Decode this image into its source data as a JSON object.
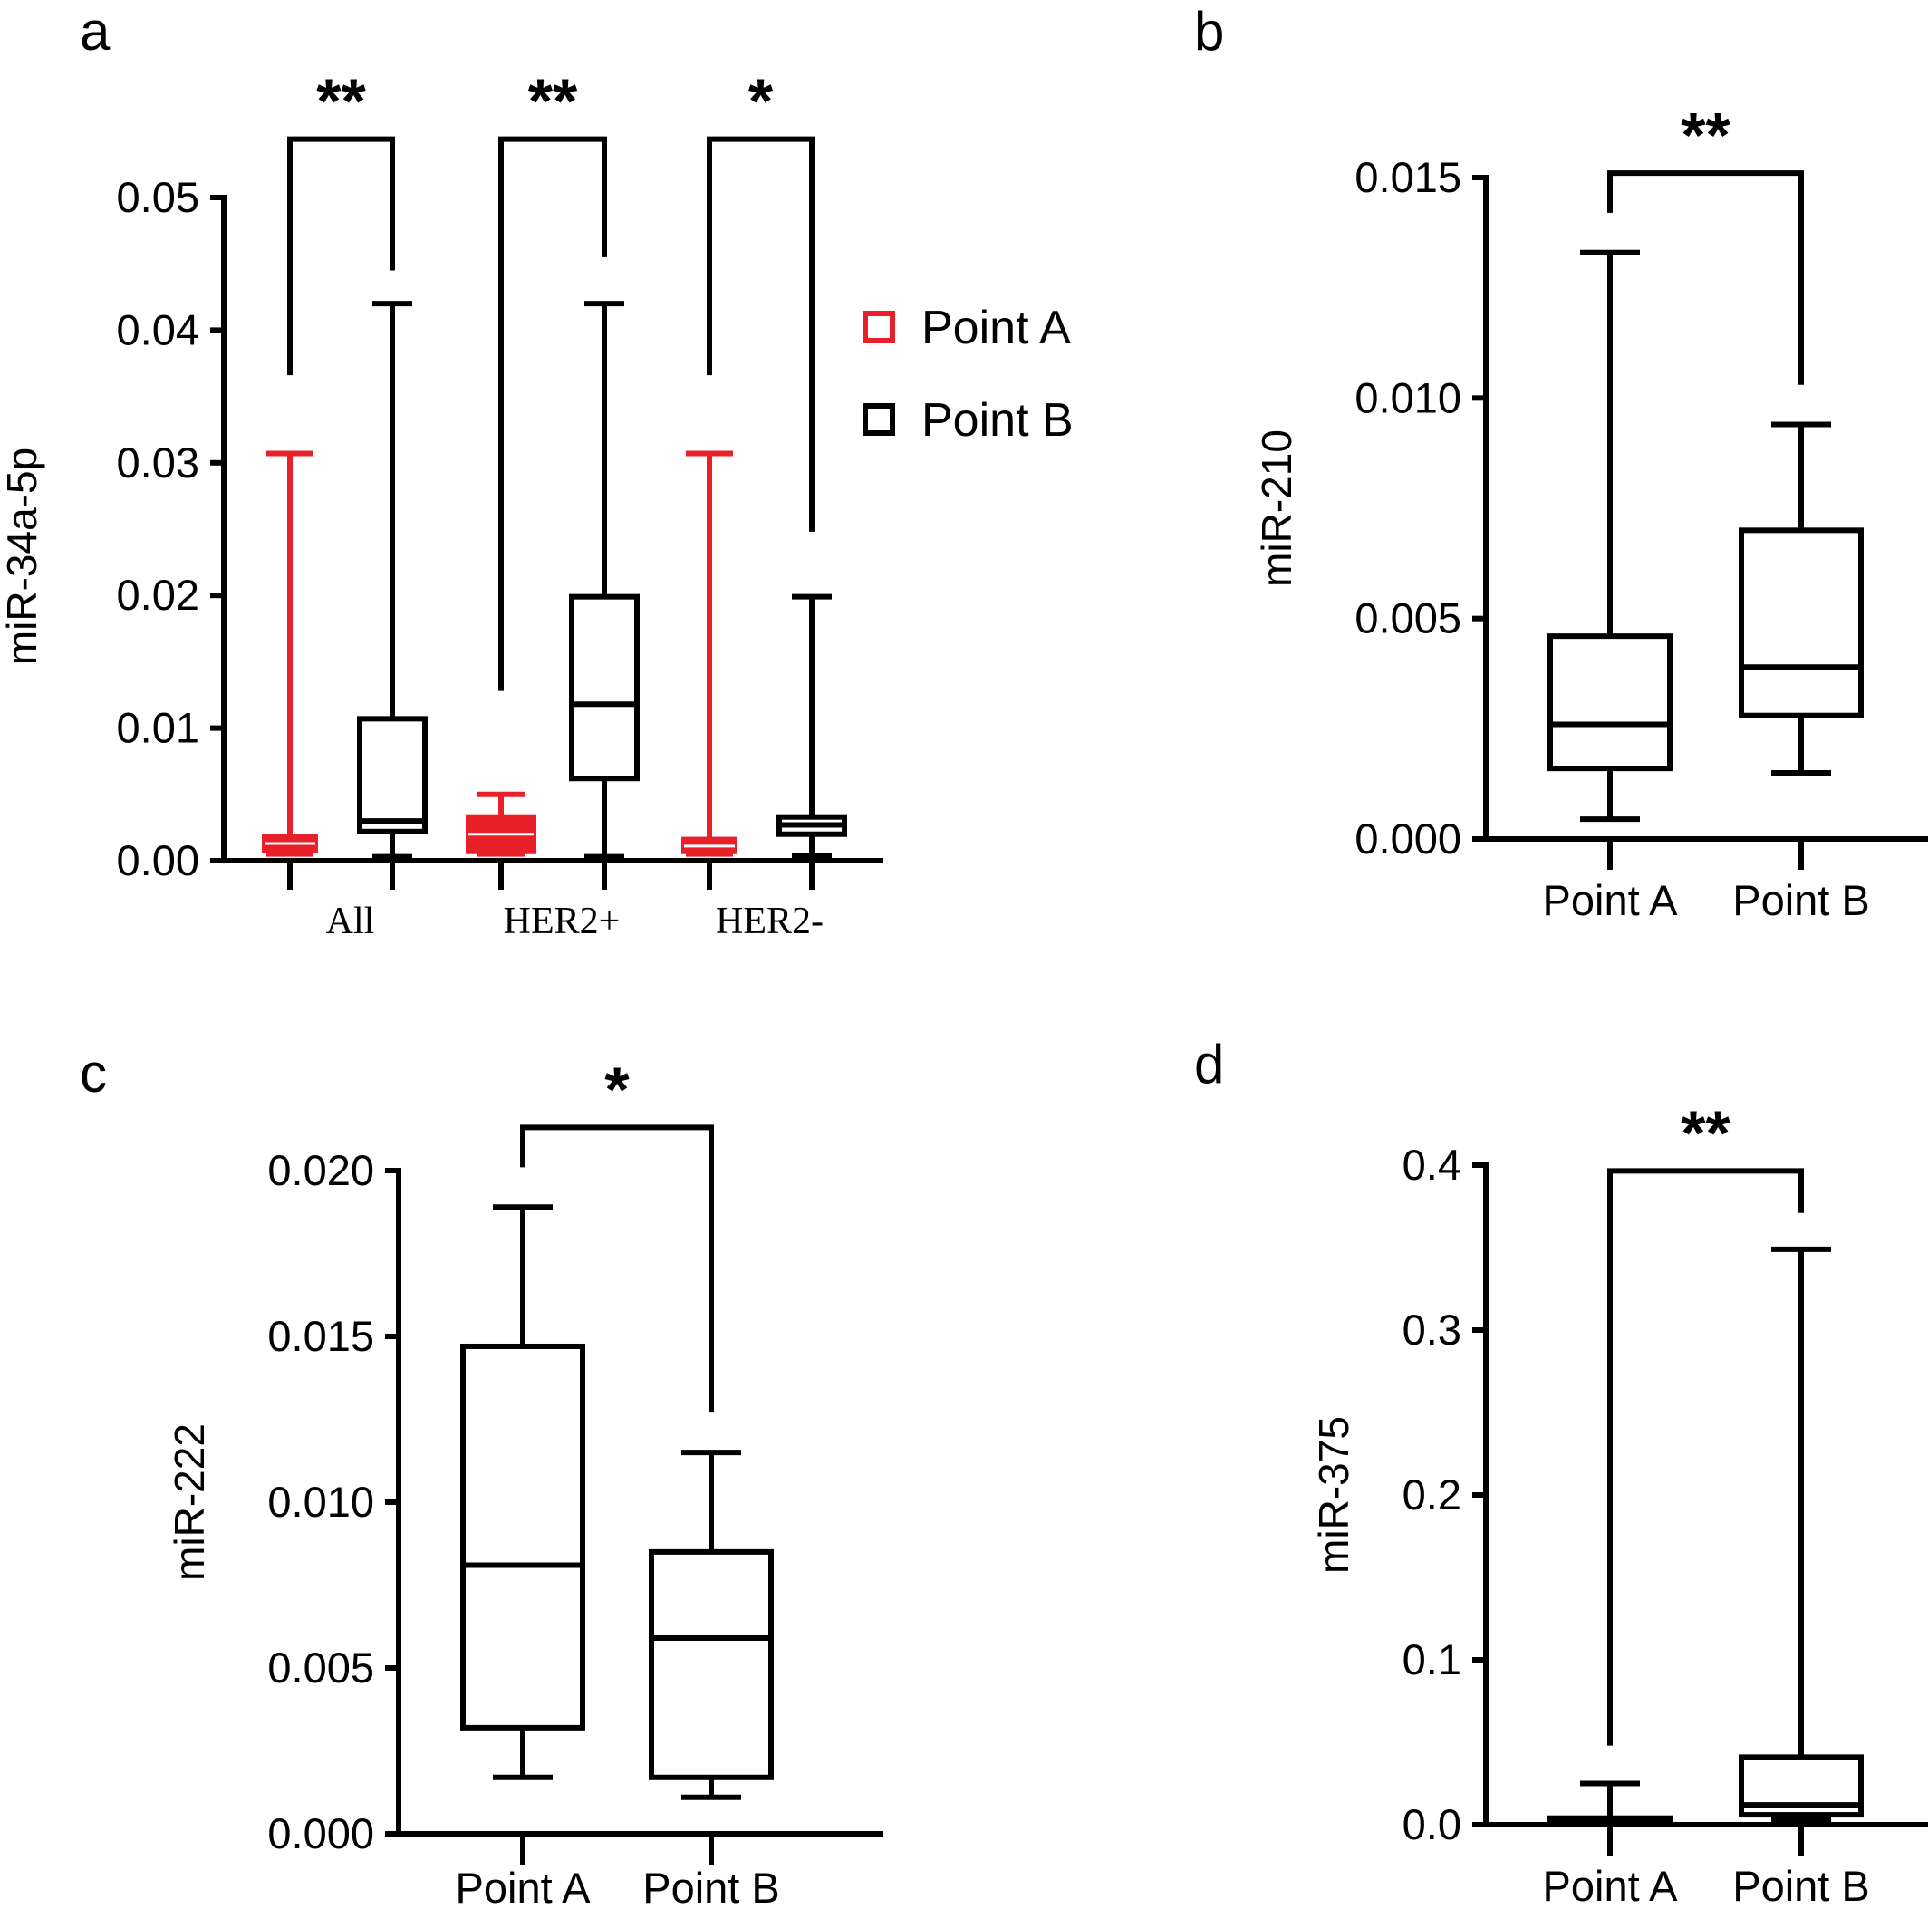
{
  "chart_data": [
    {
      "panel": "a",
      "type": "box",
      "ylabel": "miR-34a-5p",
      "ylim": [
        0,
        0.05
      ],
      "yticks": [
        "0.00",
        "0.01",
        "0.02",
        "0.03",
        "0.04",
        "0.05"
      ],
      "ytick_values": [
        0,
        0.01,
        0.02,
        0.03,
        0.04,
        0.05
      ],
      "categories": [
        "All",
        "HER2+",
        "HER2-"
      ],
      "legend": {
        "placement": "right",
        "entries": [
          {
            "name": "Point A",
            "color": "#e8202a"
          },
          {
            "name": "Point B",
            "color": "#000000"
          }
        ]
      },
      "series": [
        {
          "name": "Point A",
          "color": "#e8202a",
          "boxes": [
            {
              "category": "All",
              "min": 0.0005,
              "q1": 0.0008,
              "median": 0.0013,
              "q3": 0.0018,
              "max": 0.0307
            },
            {
              "category": "HER2+",
              "min": 0.0005,
              "q1": 0.0007,
              "median": 0.002,
              "q3": 0.0033,
              "max": 0.005
            },
            {
              "category": "HER2-",
              "min": 0.0005,
              "q1": 0.0007,
              "median": 0.0011,
              "q3": 0.0016,
              "max": 0.0307
            }
          ]
        },
        {
          "name": "Point B",
          "color": "#000000",
          "boxes": [
            {
              "category": "All",
              "min": 0.0003,
              "q1": 0.0022,
              "median": 0.003,
              "q3": 0.0107,
              "max": 0.042
            },
            {
              "category": "HER2+",
              "min": 0.0003,
              "q1": 0.0062,
              "median": 0.0118,
              "q3": 0.0199,
              "max": 0.042
            },
            {
              "category": "HER2-",
              "min": 0.0004,
              "q1": 0.002,
              "median": 0.0027,
              "q3": 0.0033,
              "max": 0.0199
            }
          ]
        }
      ],
      "significance": [
        {
          "category": "All",
          "label": "**",
          "left_drop_to": 0.0366,
          "right_drop_to": 0.0445
        },
        {
          "category": "HER2+",
          "label": "**",
          "left_drop_to": 0.0128,
          "right_drop_to": 0.0455
        },
        {
          "category": "HER2-",
          "label": "*",
          "left_drop_to": 0.0366,
          "right_drop_to": 0.0248
        }
      ],
      "bracket_top": 0.0544
    },
    {
      "panel": "b",
      "type": "box",
      "ylabel": "miR-210",
      "ylim": [
        0,
        0.015
      ],
      "yticks": [
        "0.000",
        "0.005",
        "0.010",
        "0.015"
      ],
      "ytick_values": [
        0,
        0.005,
        0.01,
        0.015
      ],
      "categories": [
        "Point A",
        "Point B"
      ],
      "boxes": [
        {
          "category": "Point A",
          "min": 0.00045,
          "q1": 0.0016,
          "median": 0.0026,
          "q3": 0.0046,
          "max": 0.0133
        },
        {
          "category": "Point B",
          "min": 0.0015,
          "q1": 0.0028,
          "median": 0.0039,
          "q3": 0.007,
          "max": 0.0094
        }
      ],
      "significance": {
        "label": "**",
        "left_drop_to": 0.0142,
        "right_drop_to": 0.0103
      },
      "bracket_top": 0.0151
    },
    {
      "panel": "c",
      "type": "box",
      "ylabel": "miR-222",
      "ylim": [
        0,
        0.02
      ],
      "yticks": [
        "0.000",
        "0.005",
        "0.010",
        "0.015",
        "0.020"
      ],
      "ytick_values": [
        0,
        0.005,
        0.01,
        0.015,
        0.02
      ],
      "categories": [
        "Point A",
        "Point B"
      ],
      "boxes": [
        {
          "category": "Point A",
          "min": 0.0017,
          "q1": 0.0032,
          "median": 0.0081,
          "q3": 0.0147,
          "max": 0.0189
        },
        {
          "category": "Point B",
          "min": 0.0011,
          "q1": 0.0017,
          "median": 0.0059,
          "q3": 0.0085,
          "max": 0.0115
        }
      ],
      "significance": {
        "label": "*",
        "left_drop_to": 0.0201,
        "right_drop_to": 0.0127
      },
      "bracket_top": 0.0213
    },
    {
      "panel": "d",
      "type": "box",
      "ylabel": "miR-375",
      "ylim": [
        0,
        0.4
      ],
      "yticks": [
        "0.0",
        "0.1",
        "0.2",
        "0.3",
        "0.4"
      ],
      "ytick_values": [
        0,
        0.1,
        0.2,
        0.3,
        0.4
      ],
      "categories": [
        "Point A",
        "Point B"
      ],
      "boxes": [
        {
          "category": "Point A",
          "min": 0.001,
          "q1": 0.0015,
          "median": 0.0025,
          "q3": 0.004,
          "max": 0.025
        },
        {
          "category": "Point B",
          "min": 0.003,
          "q1": 0.006,
          "median": 0.012,
          "q3": 0.041,
          "max": 0.349
        }
      ],
      "significance": {
        "label": "**",
        "left_drop_to": 0.048,
        "right_drop_to": 0.371
      },
      "bracket_top": 0.3965
    }
  ]
}
